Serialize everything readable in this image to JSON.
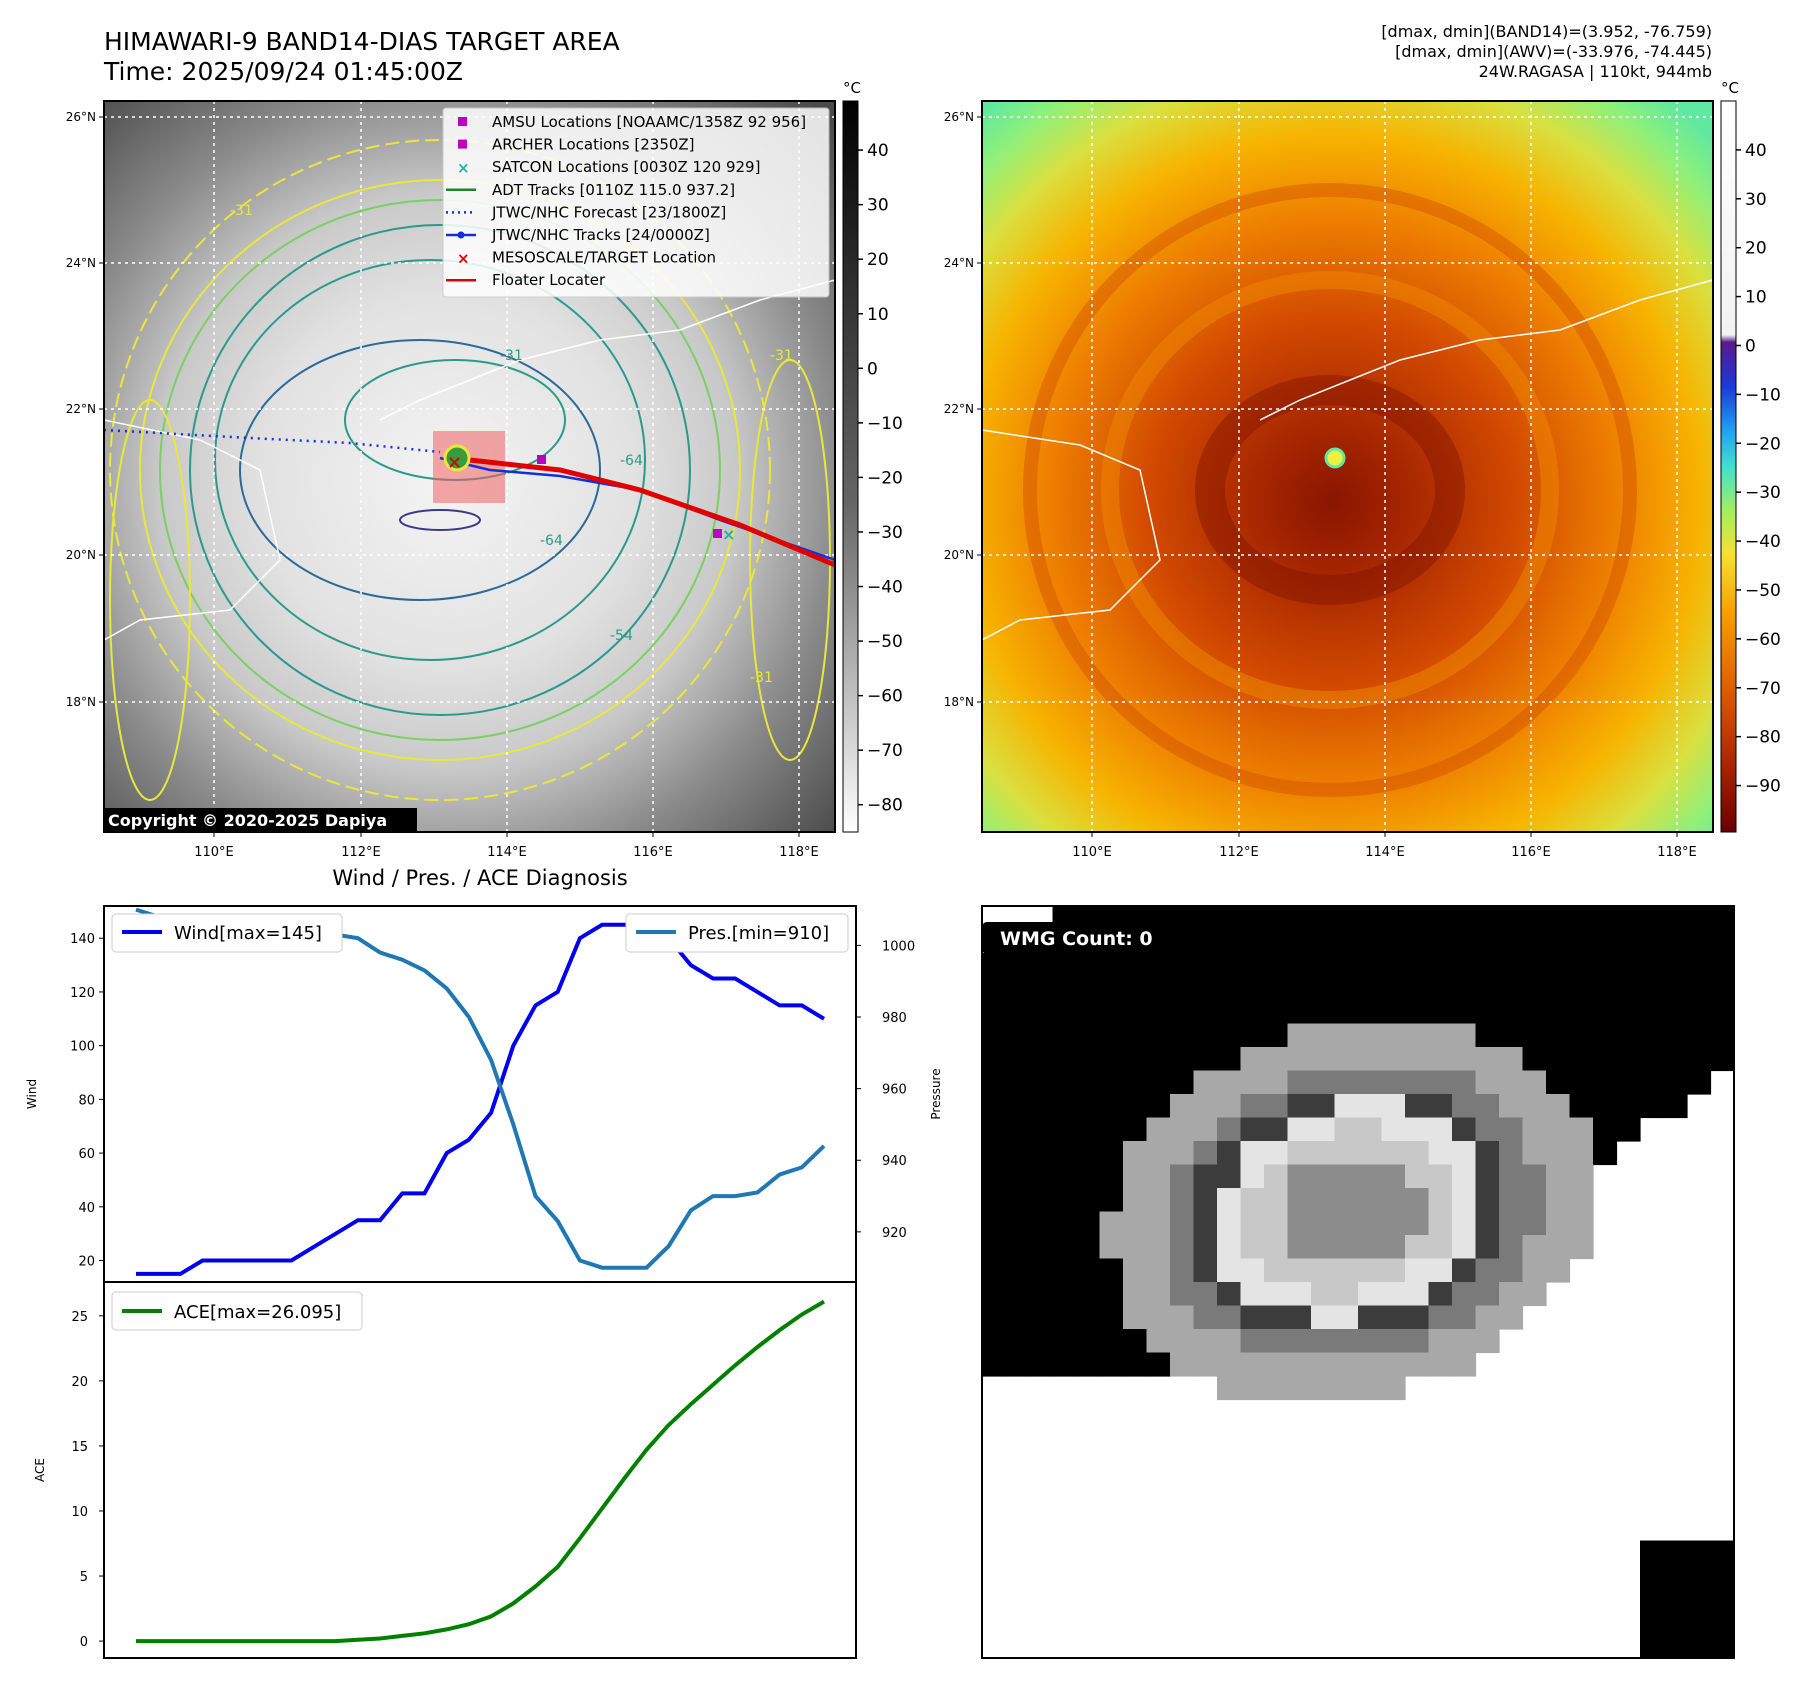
{
  "header": {
    "title_line1": "HIMAWARI-9 BAND14-DIAS TARGET AREA",
    "title_line2": "Time: 2025/09/24 01:45:00Z",
    "right_line1": "[dmax, dmin](BAND14)=(3.952, -76.759)",
    "right_line2": "[dmax, dmin](AWV)=(-33.976, -74.445)",
    "right_line3": "24W.RAGASA | 110kt, 944mb"
  },
  "map_axes": {
    "lon_ticks": [
      "110°E",
      "112°E",
      "114°E",
      "116°E",
      "118°E"
    ],
    "lat_ticks": [
      "26°N",
      "24°N",
      "22°N",
      "20°N",
      "18°N"
    ]
  },
  "panel1": {
    "legend": [
      {
        "label": "AMSU Locations [NOAAMC/1358Z 92 956]",
        "kind": "square",
        "color": "#c000c0"
      },
      {
        "label": "ARCHER Locations [2350Z]",
        "kind": "square",
        "color": "#c000c0"
      },
      {
        "label": "SATCON Locations [0030Z 120 929]",
        "kind": "x",
        "color": "#20b2aa"
      },
      {
        "label": "ADT Tracks [0110Z 115.0 937.2]",
        "kind": "line",
        "color": "#1a8a1a"
      },
      {
        "label": "JTWC/NHC Forecast [23/1800Z]",
        "kind": "dotted",
        "color": "#1030e0"
      },
      {
        "label": "JTWC/NHC Tracks [24/0000Z]",
        "kind": "linedot",
        "color": "#1030e0"
      },
      {
        "label": "MESOSCALE/TARGET Location",
        "kind": "x",
        "color": "#e00000"
      },
      {
        "label": "Floater Locater",
        "kind": "line",
        "color": "#e00000"
      }
    ],
    "copyright": "Copyright © 2020-2025 Dapiya",
    "contour_labels": [
      "-31",
      "-31",
      "-31",
      "-54",
      "-64",
      "-64",
      "-31"
    ],
    "colorbar_unit": "°C",
    "colorbar_ticks": [
      "40",
      "30",
      "20",
      "10",
      "0",
      "−10",
      "−20",
      "−30",
      "−40",
      "−50",
      "−60",
      "−70",
      "−80"
    ]
  },
  "panel2": {
    "colorbar_unit": "°C",
    "colorbar_ticks": [
      "40",
      "30",
      "20",
      "10",
      "0",
      "−10",
      "−20",
      "−30",
      "−40",
      "−50",
      "−60",
      "−70",
      "−80",
      "−90"
    ]
  },
  "panel3": {
    "title": "Wind / Pres. / ACE Diagnosis",
    "wind_ylabel": "Wind",
    "pres_ylabel": "Pressure",
    "ace_ylabel": "ACE",
    "wind_legend": "Wind[max=145]",
    "pres_legend": "Pres.[min=910]",
    "ace_legend": "ACE[max=26.095]"
  },
  "panel4": {
    "badge": "WMG Count: 0"
  },
  "chart_data": [
    {
      "type": "line",
      "title": "Wind / Pres. / ACE Diagnosis",
      "ylabel": "Wind",
      "y2label": "Pressure",
      "ylim": [
        12,
        152
      ],
      "y2lim": [
        906,
        1011
      ],
      "yticks": [
        20,
        40,
        60,
        80,
        100,
        120,
        140
      ],
      "y2ticks": [
        920,
        940,
        960,
        980,
        1000
      ],
      "series": [
        {
          "name": "Wind[max=145]",
          "axis": "left",
          "color": "#0000ee",
          "values": [
            15,
            15,
            15,
            20,
            20,
            20,
            20,
            20,
            25,
            30,
            35,
            35,
            45,
            45,
            60,
            65,
            75,
            100,
            115,
            120,
            140,
            145,
            145,
            145,
            140,
            130,
            125,
            125,
            120,
            115,
            115,
            110
          ]
        },
        {
          "name": "Pres.[min=910]",
          "axis": "right",
          "color": "#1f77b4",
          "values": [
            1010,
            1008,
            1008,
            1008,
            1006,
            1005,
            1005,
            1005,
            1004,
            1003,
            1002,
            998,
            996,
            993,
            988,
            980,
            968,
            950,
            930,
            923,
            912,
            910,
            910,
            910,
            916,
            926,
            930,
            930,
            931,
            936,
            938,
            944
          ]
        }
      ]
    },
    {
      "type": "line",
      "ylabel": "ACE",
      "ylim": [
        -1.3,
        27.6
      ],
      "yticks": [
        0,
        5,
        10,
        15,
        20,
        25
      ],
      "series": [
        {
          "name": "ACE[max=26.095]",
          "axis": "left",
          "color": "#008000",
          "values": [
            0,
            0,
            0,
            0,
            0,
            0,
            0,
            0,
            0,
            0,
            0.1,
            0.2,
            0.4,
            0.6,
            0.9,
            1.3,
            1.9,
            2.9,
            4.2,
            5.7,
            7.9,
            10.2,
            12.5,
            14.7,
            16.6,
            18.2,
            19.7,
            21.2,
            22.6,
            23.9,
            25.1,
            26.095
          ]
        }
      ]
    }
  ]
}
